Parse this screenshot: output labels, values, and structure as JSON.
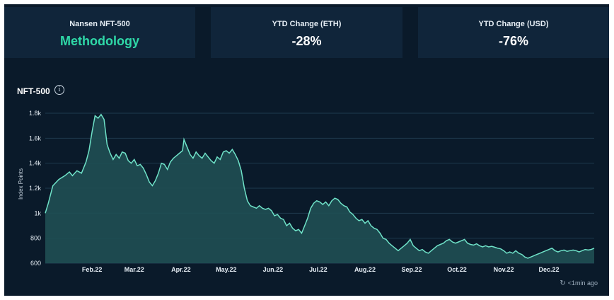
{
  "cards": [
    {
      "title": "Nansen NFT-500",
      "value": "Methodology"
    },
    {
      "title": "YTD Change (ETH)",
      "value": "-28%"
    },
    {
      "title": "YTD Change (USD)",
      "value": "-76%"
    }
  ],
  "chart": {
    "title": "NFT-500",
    "info_icon": "info-icon",
    "updated": "<1min ago",
    "refresh_icon": "refresh-icon"
  },
  "colors": {
    "background": "#0a1a2a",
    "card": "#10253a",
    "accent": "#2fd9a8",
    "line": "#6fe2c8",
    "fill": "#1f4f53"
  },
  "chart_data": {
    "type": "area",
    "title": "NFT-500",
    "ylabel": "Index Points",
    "xlabel": "",
    "ylim": [
      600,
      1800
    ],
    "yticks": [
      600,
      800,
      1000,
      1200,
      1400,
      1600,
      1800
    ],
    "ytick_labels": [
      "600",
      "800",
      "1k",
      "1.2k",
      "1.4k",
      "1.6k",
      "1.8k"
    ],
    "x_tick_labels": [
      "Feb.22",
      "Mar.22",
      "Apr.22",
      "May.22",
      "Jun.22",
      "Jul.22",
      "Aug.22",
      "Sep.22",
      "Oct.22",
      "Nov.22",
      "Dec.22"
    ],
    "x_tick_days": [
      31,
      59,
      90,
      120,
      151,
      181,
      212,
      243,
      273,
      304,
      334
    ],
    "xlim_days": [
      0,
      364
    ],
    "grid": true,
    "series": [
      {
        "points": [
          [
            0,
            1000
          ],
          [
            2,
            1080
          ],
          [
            5,
            1220
          ],
          [
            9,
            1270
          ],
          [
            13,
            1300
          ],
          [
            16,
            1330
          ],
          [
            18,
            1300
          ],
          [
            21,
            1340
          ],
          [
            24,
            1320
          ],
          [
            27,
            1410
          ],
          [
            29,
            1500
          ],
          [
            31,
            1650
          ],
          [
            33,
            1780
          ],
          [
            35,
            1760
          ],
          [
            37,
            1790
          ],
          [
            39,
            1750
          ],
          [
            41,
            1550
          ],
          [
            43,
            1480
          ],
          [
            45,
            1430
          ],
          [
            47,
            1470
          ],
          [
            49,
            1440
          ],
          [
            51,
            1490
          ],
          [
            53,
            1480
          ],
          [
            55,
            1420
          ],
          [
            57,
            1400
          ],
          [
            59,
            1430
          ],
          [
            61,
            1380
          ],
          [
            63,
            1390
          ],
          [
            65,
            1360
          ],
          [
            67,
            1310
          ],
          [
            69,
            1250
          ],
          [
            71,
            1220
          ],
          [
            73,
            1260
          ],
          [
            75,
            1320
          ],
          [
            77,
            1400
          ],
          [
            79,
            1390
          ],
          [
            81,
            1350
          ],
          [
            83,
            1410
          ],
          [
            85,
            1440
          ],
          [
            87,
            1460
          ],
          [
            89,
            1480
          ],
          [
            91,
            1500
          ],
          [
            92,
            1590
          ],
          [
            94,
            1530
          ],
          [
            96,
            1470
          ],
          [
            98,
            1440
          ],
          [
            100,
            1490
          ],
          [
            102,
            1460
          ],
          [
            104,
            1440
          ],
          [
            106,
            1480
          ],
          [
            108,
            1450
          ],
          [
            110,
            1420
          ],
          [
            112,
            1400
          ],
          [
            114,
            1450
          ],
          [
            116,
            1430
          ],
          [
            118,
            1490
          ],
          [
            120,
            1500
          ],
          [
            122,
            1480
          ],
          [
            124,
            1510
          ],
          [
            126,
            1470
          ],
          [
            128,
            1420
          ],
          [
            130,
            1340
          ],
          [
            132,
            1200
          ],
          [
            134,
            1100
          ],
          [
            136,
            1060
          ],
          [
            138,
            1050
          ],
          [
            140,
            1040
          ],
          [
            142,
            1060
          ],
          [
            144,
            1040
          ],
          [
            146,
            1030
          ],
          [
            148,
            1040
          ],
          [
            150,
            1020
          ],
          [
            152,
            980
          ],
          [
            154,
            990
          ],
          [
            156,
            960
          ],
          [
            158,
            950
          ],
          [
            160,
            900
          ],
          [
            162,
            920
          ],
          [
            164,
            880
          ],
          [
            166,
            860
          ],
          [
            168,
            870
          ],
          [
            170,
            840
          ],
          [
            172,
            900
          ],
          [
            174,
            960
          ],
          [
            176,
            1040
          ],
          [
            178,
            1080
          ],
          [
            180,
            1100
          ],
          [
            182,
            1090
          ],
          [
            184,
            1070
          ],
          [
            186,
            1090
          ],
          [
            188,
            1060
          ],
          [
            190,
            1100
          ],
          [
            192,
            1120
          ],
          [
            194,
            1110
          ],
          [
            196,
            1080
          ],
          [
            198,
            1060
          ],
          [
            200,
            1050
          ],
          [
            202,
            1010
          ],
          [
            204,
            990
          ],
          [
            206,
            960
          ],
          [
            208,
            940
          ],
          [
            210,
            950
          ],
          [
            212,
            920
          ],
          [
            214,
            940
          ],
          [
            216,
            900
          ],
          [
            218,
            880
          ],
          [
            220,
            870
          ],
          [
            222,
            840
          ],
          [
            224,
            800
          ],
          [
            226,
            790
          ],
          [
            228,
            760
          ],
          [
            230,
            740
          ],
          [
            232,
            720
          ],
          [
            234,
            700
          ],
          [
            236,
            720
          ],
          [
            238,
            740
          ],
          [
            240,
            760
          ],
          [
            242,
            790
          ],
          [
            244,
            740
          ],
          [
            246,
            720
          ],
          [
            248,
            700
          ],
          [
            250,
            710
          ],
          [
            252,
            690
          ],
          [
            254,
            680
          ],
          [
            256,
            700
          ],
          [
            258,
            720
          ],
          [
            260,
            740
          ],
          [
            262,
            750
          ],
          [
            264,
            760
          ],
          [
            266,
            780
          ],
          [
            268,
            790
          ],
          [
            270,
            770
          ],
          [
            272,
            760
          ],
          [
            274,
            770
          ],
          [
            276,
            780
          ],
          [
            278,
            790
          ],
          [
            280,
            760
          ],
          [
            282,
            750
          ],
          [
            284,
            745
          ],
          [
            286,
            755
          ],
          [
            288,
            740
          ],
          [
            290,
            730
          ],
          [
            292,
            740
          ],
          [
            294,
            730
          ],
          [
            296,
            735
          ],
          [
            298,
            728
          ],
          [
            300,
            720
          ],
          [
            302,
            715
          ],
          [
            304,
            700
          ],
          [
            306,
            680
          ],
          [
            308,
            690
          ],
          [
            310,
            680
          ],
          [
            312,
            700
          ],
          [
            314,
            680
          ],
          [
            316,
            670
          ],
          [
            318,
            650
          ],
          [
            320,
            640
          ],
          [
            322,
            650
          ],
          [
            324,
            660
          ],
          [
            326,
            670
          ],
          [
            328,
            680
          ],
          [
            330,
            690
          ],
          [
            332,
            700
          ],
          [
            334,
            710
          ],
          [
            336,
            720
          ],
          [
            338,
            700
          ],
          [
            340,
            690
          ],
          [
            342,
            700
          ],
          [
            344,
            705
          ],
          [
            346,
            695
          ],
          [
            348,
            700
          ],
          [
            350,
            705
          ],
          [
            352,
            700
          ],
          [
            354,
            690
          ],
          [
            356,
            700
          ],
          [
            358,
            710
          ],
          [
            360,
            705
          ],
          [
            362,
            710
          ],
          [
            364,
            720
          ]
        ]
      }
    ]
  }
}
